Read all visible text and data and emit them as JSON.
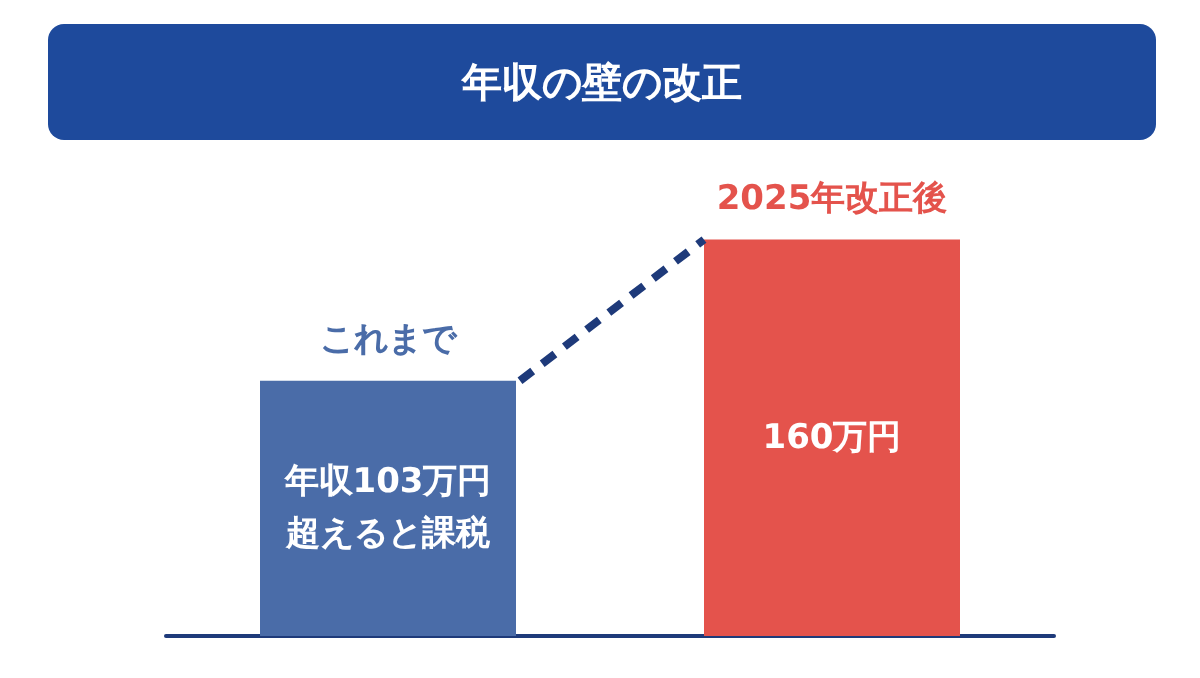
{
  "chart_data": {
    "type": "bar",
    "title": "年収の壁の改正",
    "categories": [
      "これまで",
      "2025年改正後"
    ],
    "values": [
      103,
      160
    ],
    "colors": [
      "#4a6ca8",
      "#e4534c"
    ],
    "value_labels": [
      "年収103万円超えると課税",
      "160万円"
    ]
  }
}
